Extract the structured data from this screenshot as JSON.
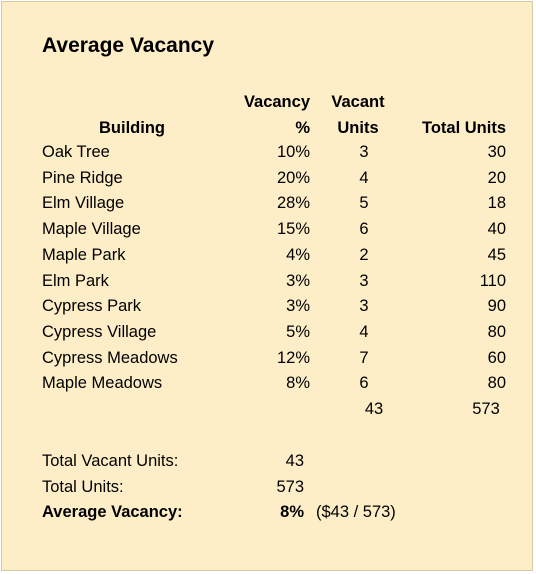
{
  "title": "Average Vacancy",
  "headers": {
    "building": "Building",
    "vacancy_line1": "Vacancy",
    "vacancy_line2": "%",
    "vacant_line1": "Vacant",
    "vacant_line2": "Units",
    "total_units": "Total Units"
  },
  "rows": [
    {
      "building": "Oak Tree",
      "vacancy_pct": "10%",
      "vacant_units": "3",
      "total_units": "30"
    },
    {
      "building": "Pine Ridge",
      "vacancy_pct": "20%",
      "vacant_units": "4",
      "total_units": "20"
    },
    {
      "building": "Elm Village",
      "vacancy_pct": "28%",
      "vacant_units": "5",
      "total_units": "18"
    },
    {
      "building": "Maple Village",
      "vacancy_pct": "15%",
      "vacant_units": "6",
      "total_units": "40"
    },
    {
      "building": "Maple Park",
      "vacancy_pct": "4%",
      "vacant_units": "2",
      "total_units": "45"
    },
    {
      "building": "Elm Park",
      "vacancy_pct": "3%",
      "vacant_units": "3",
      "total_units": "110"
    },
    {
      "building": "Cypress Park",
      "vacancy_pct": "3%",
      "vacant_units": "3",
      "total_units": "90"
    },
    {
      "building": "Cypress Village",
      "vacancy_pct": "5%",
      "vacant_units": "4",
      "total_units": "80"
    },
    {
      "building": "Cypress Meadows",
      "vacancy_pct": "12%",
      "vacant_units": "7",
      "total_units": "60"
    },
    {
      "building": "Maple Meadows",
      "vacancy_pct": "8%",
      "vacant_units": "6",
      "total_units": "80"
    }
  ],
  "totals": {
    "vacant_units": "43",
    "total_units": "573"
  },
  "summary": {
    "vacant_label": "Total Vacant Units:",
    "vacant_value": "43",
    "units_label": "Total Units:",
    "units_value": "573",
    "avg_label": "Average Vacancy:",
    "avg_value": "8%",
    "avg_note": "($43 / 573)"
  },
  "colors": {
    "background": "#fdeec8"
  }
}
